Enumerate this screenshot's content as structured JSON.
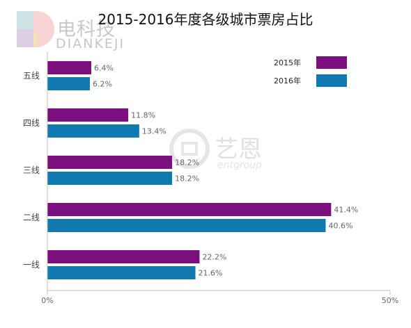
{
  "logo": {
    "name_cn": "电科技",
    "name_en": "DIANKEJI"
  },
  "watermark": {
    "name_cn": "艺恩",
    "name_en": "entgroup"
  },
  "chart_data": {
    "type": "bar",
    "orientation": "horizontal",
    "title": "2015-2016年度各级城市票房占比",
    "categories": [
      "五线",
      "四线",
      "三线",
      "二线",
      "一线"
    ],
    "series": [
      {
        "name": "2015年",
        "color": "#7b0f7e",
        "values": [
          6.4,
          11.8,
          18.2,
          41.4,
          22.2
        ],
        "labels": [
          "6.4%",
          "11.8%",
          "18.2%",
          "41.4%",
          "22.2%"
        ]
      },
      {
        "name": "2016年",
        "color": "#107ab0",
        "values": [
          6.2,
          13.4,
          18.2,
          40.6,
          21.6
        ],
        "labels": [
          "6.2%",
          "13.4%",
          "18.2%",
          "40.6%",
          "21.6%"
        ]
      }
    ],
    "xlim": [
      0,
      50
    ],
    "xticks": [
      "0%",
      "50%"
    ],
    "xlabel": "",
    "ylabel": "",
    "legend_position": "top-right",
    "grid": false
  }
}
